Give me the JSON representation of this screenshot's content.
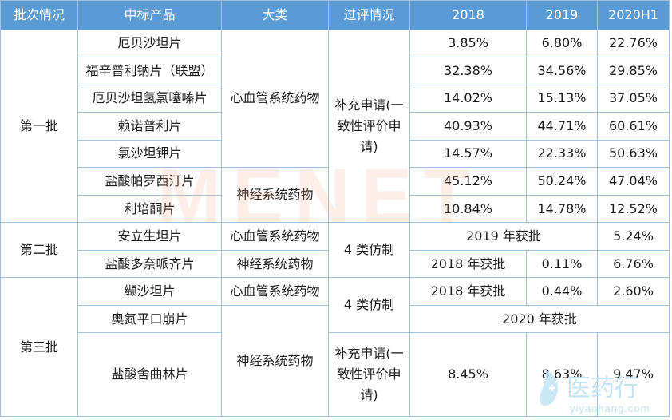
{
  "headers": [
    "批次情况",
    "中标产品",
    "大类",
    "过评情况",
    "2018",
    "2019",
    "2020H1"
  ],
  "batches": {
    "b1": "第一批",
    "b2": "第二批",
    "b3": "第三批"
  },
  "categories": {
    "cardio": "心血管系统药物",
    "neuro": "神经系统药物"
  },
  "review": {
    "supplement": "补充申请(一致性评价申请)",
    "generic4": "4 类仿制"
  },
  "rows": [
    {
      "product": "厄贝沙坦片",
      "v2018": "3.85%",
      "v2019": "6.80%",
      "v2020": "22.76%"
    },
    {
      "product": "福辛普利钠片（联盟）",
      "v2018": "32.38%",
      "v2019": "34.56%",
      "v2020": "29.85%"
    },
    {
      "product": "厄贝沙坦氢氯噻嗪片",
      "v2018": "14.02%",
      "v2019": "15.13%",
      "v2020": "37.05%"
    },
    {
      "product": "赖诺普利片",
      "v2018": "40.93%",
      "v2019": "44.71%",
      "v2020": "60.61%"
    },
    {
      "product": "氯沙坦钾片",
      "v2018": "14.57%",
      "v2019": "22.33%",
      "v2020": "50.63%"
    },
    {
      "product": "盐酸帕罗西汀片",
      "v2018": "45.12%",
      "v2019": "50.24%",
      "v2020": "47.04%"
    },
    {
      "product": "利培酮片",
      "v2018": "10.84%",
      "v2019": "14.78%",
      "v2020": "12.52%"
    },
    {
      "product": "安立生坦片",
      "approval": "2019 年获批",
      "v2020": "5.24%"
    },
    {
      "product": "盐酸多奈哌齐片",
      "approval": "2018 年获批",
      "v2019": "0.11%",
      "v2020": "6.76%"
    },
    {
      "product": "缬沙坦片",
      "approval": "2018 年获批",
      "v2019": "0.44%",
      "v2020": "2.60%"
    },
    {
      "product": "奥氮平口崩片",
      "approval": "2020 年获批"
    },
    {
      "product": "盐酸舍曲林片",
      "v2018": "8.45%",
      "v2019": "8.63%",
      "v2020": "9.47%"
    }
  ],
  "watermark": "MENET",
  "logo": {
    "name": "医药行",
    "url": "yiyaohang.com"
  }
}
